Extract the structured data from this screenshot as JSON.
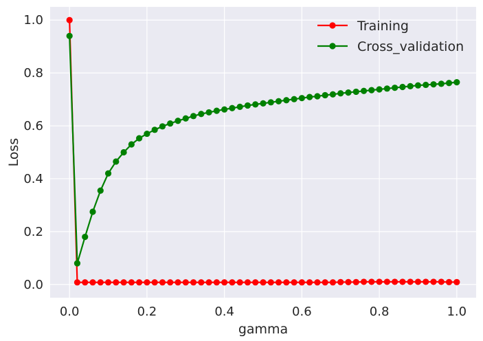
{
  "chart_data": {
    "type": "line",
    "xlabel": "gamma",
    "ylabel": "Loss",
    "xlim": [
      -0.05,
      1.05
    ],
    "ylim": [
      -0.05,
      1.05
    ],
    "x_ticks": [
      "0.0",
      "0.2",
      "0.4",
      "0.6",
      "0.8",
      "1.0"
    ],
    "y_ticks": [
      "0.0",
      "0.2",
      "0.4",
      "0.6",
      "0.8",
      "1.0"
    ],
    "grid": true,
    "legend_position": "top-right",
    "x": [
      0.0,
      0.02,
      0.04,
      0.06,
      0.08,
      0.1,
      0.12,
      0.14,
      0.16,
      0.18,
      0.2,
      0.22,
      0.24,
      0.26,
      0.28,
      0.3,
      0.32,
      0.34,
      0.36,
      0.38,
      0.4,
      0.42,
      0.44,
      0.46,
      0.48,
      0.5,
      0.52,
      0.54,
      0.56,
      0.58,
      0.6,
      0.62,
      0.64,
      0.66,
      0.68,
      0.7,
      0.72,
      0.74,
      0.76,
      0.78,
      0.8,
      0.82,
      0.84,
      0.86,
      0.88,
      0.9,
      0.92,
      0.94,
      0.96,
      0.98,
      1.0
    ],
    "series": [
      {
        "name": "Training",
        "color": "#ff0000",
        "values": [
          1.0,
          0.008,
          0.008,
          0.008,
          0.008,
          0.008,
          0.008,
          0.008,
          0.008,
          0.008,
          0.008,
          0.008,
          0.008,
          0.008,
          0.008,
          0.008,
          0.008,
          0.008,
          0.008,
          0.008,
          0.008,
          0.008,
          0.008,
          0.008,
          0.008,
          0.008,
          0.008,
          0.008,
          0.008,
          0.008,
          0.008,
          0.008,
          0.008,
          0.008,
          0.008,
          0.009,
          0.009,
          0.009,
          0.01,
          0.01,
          0.01,
          0.01,
          0.01,
          0.01,
          0.01,
          0.01,
          0.01,
          0.01,
          0.01,
          0.009,
          0.009
        ]
      },
      {
        "name": "Cross_validation",
        "color": "#008000",
        "values": [
          0.94,
          0.08,
          0.18,
          0.275,
          0.355,
          0.42,
          0.465,
          0.5,
          0.53,
          0.553,
          0.57,
          0.585,
          0.598,
          0.609,
          0.619,
          0.628,
          0.637,
          0.645,
          0.651,
          0.657,
          0.662,
          0.667,
          0.672,
          0.677,
          0.681,
          0.685,
          0.689,
          0.693,
          0.697,
          0.701,
          0.705,
          0.709,
          0.712,
          0.716,
          0.719,
          0.723,
          0.726,
          0.729,
          0.732,
          0.735,
          0.738,
          0.741,
          0.744,
          0.747,
          0.75,
          0.753,
          0.755,
          0.757,
          0.759,
          0.762,
          0.765
        ]
      }
    ]
  }
}
